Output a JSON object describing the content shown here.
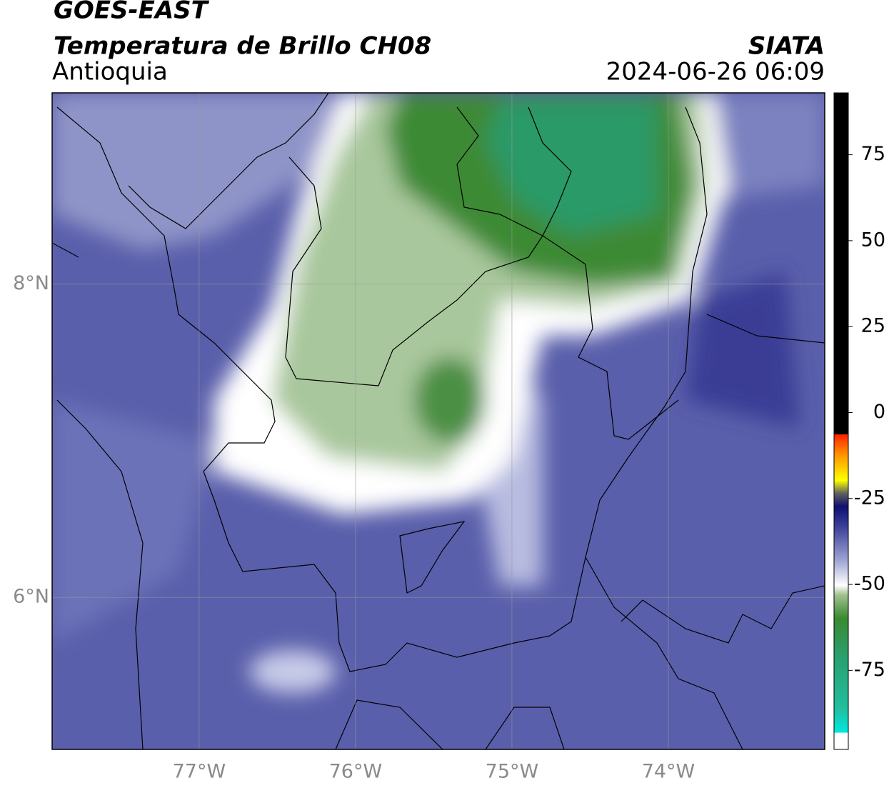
{
  "header": {
    "title": "GOES-EAST",
    "subtitle": "Temperatura de Brillo CH08",
    "region": "Antioquia",
    "source": "SIATA",
    "datetime": "2024-06-26 06:09"
  },
  "map": {
    "lonlim": [
      -77.94,
      -73.0
    ],
    "latlim": [
      5.03,
      9.22
    ],
    "lon_ticks": [
      {
        "value": -77,
        "label": "77°W"
      },
      {
        "value": -76,
        "label": "76°W"
      },
      {
        "value": -75,
        "label": "75°W"
      },
      {
        "value": -74,
        "label": "74°W"
      }
    ],
    "lat_ticks": [
      {
        "value": 8,
        "label": "8°N"
      },
      {
        "value": 6,
        "label": "6°N"
      }
    ]
  },
  "colorbar": {
    "lim": [
      -98,
      93
    ],
    "ticks": [
      75,
      50,
      25,
      0,
      -25,
      -50,
      -75
    ]
  }
}
